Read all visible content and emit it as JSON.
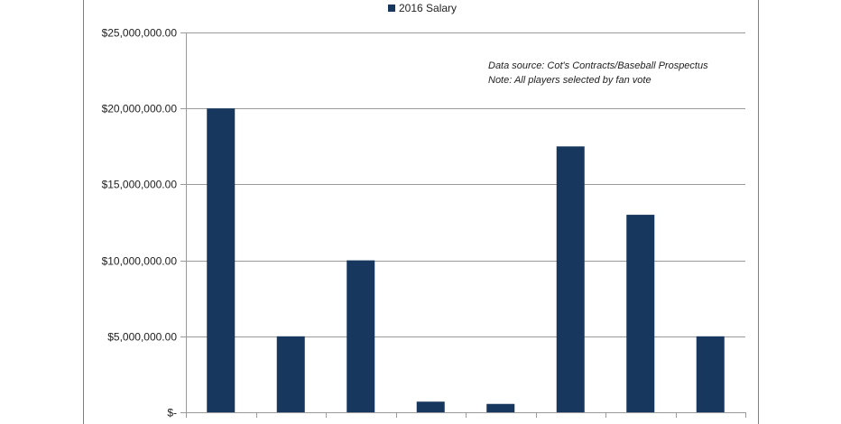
{
  "chart_data": {
    "type": "bar",
    "categories": [
      "",
      "",
      "",
      "",
      "",
      "",
      "",
      ""
    ],
    "series": [
      {
        "name": "2016 Salary",
        "values": [
          20000000,
          5000000,
          10000000,
          700000,
          550000,
          17500000,
          13000000,
          5000000
        ],
        "color": "#17375e"
      }
    ],
    "ylim": [
      0,
      25000000
    ],
    "yticks": [
      0,
      5000000,
      10000000,
      15000000,
      20000000,
      25000000
    ],
    "ytick_labels": [
      "$-",
      "$5,000,000.00",
      "$10,000,000.00",
      "$15,000,000.00",
      "$20,000,000.00",
      "$25,000,000.00"
    ],
    "grid": true,
    "legend_position": "top",
    "annotations": [
      "Data source: Cot's Contracts/Baseball Prospectus",
      "Note: All players selected by fan vote"
    ],
    "title": "",
    "xlabel": "",
    "ylabel": ""
  },
  "colors": {
    "bar": "#17375e",
    "grid": "#9a9a9a",
    "border": "#7f7f7f"
  }
}
